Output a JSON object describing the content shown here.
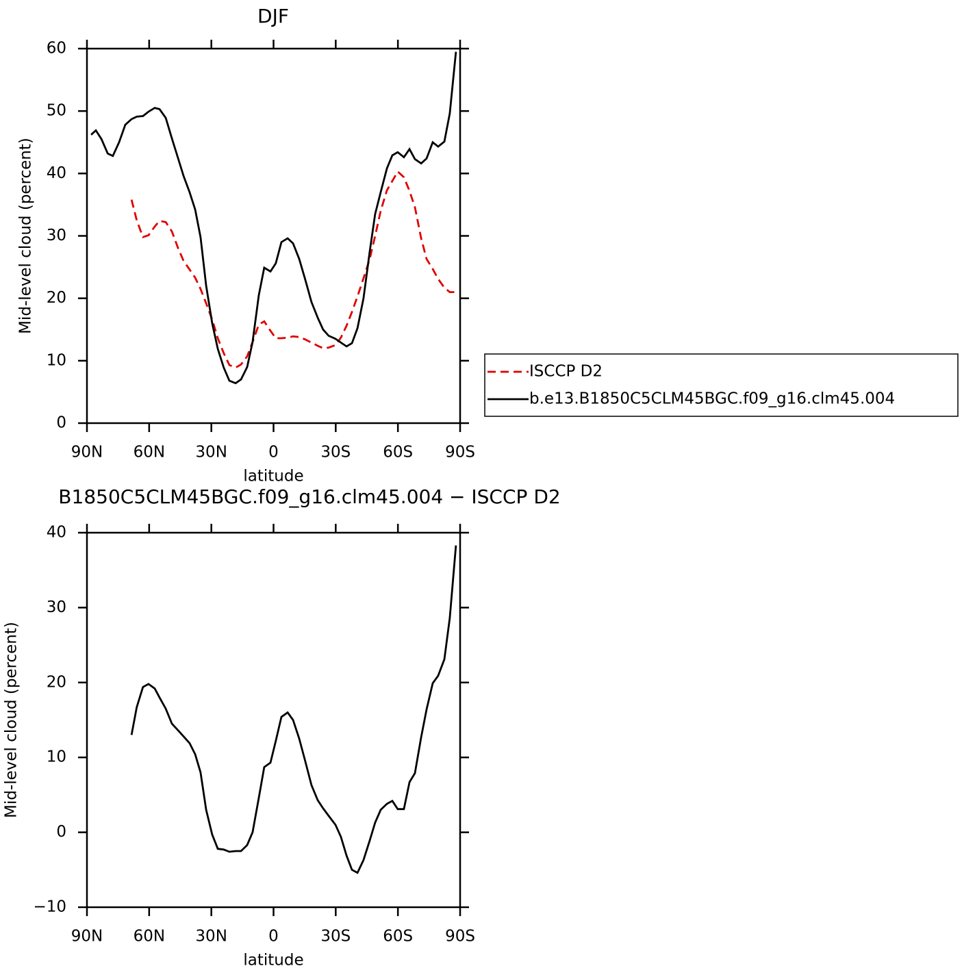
{
  "chart_data": [
    {
      "type": "line",
      "title": "DJF",
      "xlabel": "latitude",
      "ylabel": "Mid-level cloud (percent)",
      "x": [
        88,
        85.7,
        83,
        80,
        77.5,
        74.5,
        71.5,
        68.5,
        66,
        63,
        60.3,
        57.3,
        55,
        52,
        49,
        46,
        43.4,
        40.5,
        37.8,
        35.2,
        32.5,
        29.6,
        26.9,
        24,
        21.3,
        18.3,
        15.7,
        12.7,
        10.1,
        7.1,
        4.5,
        1.5,
        -1.1,
        -3.8,
        -6.8,
        -9.4,
        -12.4,
        -15.3,
        -18.3,
        -21.3,
        -23.9,
        -26.6,
        -29.9,
        -32.5,
        -35.2,
        -37.8,
        -40.5,
        -43.4,
        -46.4,
        -49,
        -51.7,
        -54.7,
        -57.3,
        -59.9,
        -62.9,
        -65.6,
        -68.2,
        -71.2,
        -73.8,
        -76.8,
        -79.4,
        -82.4,
        -85,
        -88
      ],
      "series": [
        {
          "name": "ISCCP D2",
          "color": "#e00000",
          "dash": true,
          "values": [
            null,
            null,
            null,
            null,
            null,
            null,
            null,
            35.8,
            32.5,
            29.8,
            30.1,
            31.5,
            32.4,
            32.2,
            30.7,
            28,
            26,
            24.6,
            23.3,
            21.5,
            19.2,
            16.6,
            13.6,
            11.2,
            9.3,
            8.9,
            9.4,
            10.7,
            13,
            15.8,
            16.3,
            14.8,
            13.6,
            13.6,
            13.7,
            13.9,
            13.8,
            13.4,
            12.9,
            12.4,
            12,
            12.1,
            12.5,
            13.7,
            15.6,
            17.8,
            20.3,
            23.2,
            26.3,
            30,
            34,
            37.3,
            38.8,
            40.3,
            39.4,
            37.2,
            34.6,
            29.6,
            26.3,
            24.7,
            23.1,
            21.7,
            21,
            21
          ]
        },
        {
          "name": "b.e13.B1850C5CLM45BGC.f09_g16.clm45.004",
          "color": "#000000",
          "dash": false,
          "values": [
            46.2,
            46.9,
            45.5,
            43.2,
            42.8,
            45,
            47.8,
            48.7,
            49.1,
            49.2,
            49.9,
            50.5,
            50.3,
            48.9,
            45.6,
            42.4,
            39.6,
            37,
            34.2,
            29.8,
            22,
            16,
            11.9,
            8.9,
            6.8,
            6.4,
            7,
            9,
            13,
            20.5,
            24.9,
            24.3,
            25.6,
            29,
            29.6,
            28.8,
            26.3,
            23,
            19.4,
            16.9,
            15,
            14,
            13.5,
            12.9,
            12.3,
            12.8,
            15.2,
            20,
            27.5,
            33.5,
            37,
            40.8,
            42.9,
            43.4,
            42.6,
            43.9,
            42.3,
            41.6,
            42.4,
            45,
            44.3,
            45.1,
            49.6,
            59.5
          ]
        }
      ],
      "xlim": [
        90,
        -90
      ],
      "xticks": [
        {
          "value": 90,
          "label": "90N"
        },
        {
          "value": 60,
          "label": "60N"
        },
        {
          "value": 30,
          "label": "30N"
        },
        0,
        {
          "value": -30,
          "label": "30S"
        },
        {
          "value": -60,
          "label": "60S"
        },
        {
          "value": -90,
          "label": "90S"
        }
      ],
      "ylim": [
        0,
        60
      ],
      "yticks": [
        0,
        10,
        20,
        30,
        40,
        50,
        60
      ],
      "legend": "right"
    },
    {
      "type": "line",
      "title": "B1850C5CLM45BGC.f09_g16.clm45.004 − ISCCP D2",
      "xlabel": "latitude",
      "ylabel": "Mid-level cloud (percent)",
      "x": [
        68.5,
        66,
        63,
        60.3,
        57.3,
        55,
        52,
        49,
        46,
        43.4,
        40.5,
        37.8,
        35.2,
        32.5,
        29.6,
        26.9,
        24,
        21.3,
        18.3,
        15.7,
        12.7,
        10.1,
        7.1,
        4.5,
        1.5,
        -1.1,
        -3.8,
        -6.8,
        -9.4,
        -12.4,
        -15.3,
        -18.3,
        -21.3,
        -23.9,
        -26.6,
        -29.9,
        -32.5,
        -35.2,
        -37.8,
        -40.5,
        -43.4,
        -46.4,
        -49,
        -51.7,
        -54.7,
        -57.3,
        -59.9,
        -62.9,
        -65.6,
        -68.2,
        -71.2,
        -73.8,
        -76.8,
        -79.4,
        -82.4,
        -85,
        -88
      ],
      "color": "#000000",
      "values": [
        13,
        16.7,
        19.4,
        19.8,
        19.2,
        18,
        16.5,
        14.5,
        13.6,
        12.8,
        11.9,
        10.4,
        8,
        3,
        -0.3,
        -2.2,
        -2.3,
        -2.6,
        -2.5,
        -2.5,
        -1.7,
        0,
        4.6,
        8.7,
        9.3,
        12.2,
        15.4,
        16,
        15,
        12.5,
        9.5,
        6.3,
        4.3,
        3.2,
        2.2,
        1,
        -0.6,
        -3.1,
        -5,
        -5.4,
        -3.7,
        -1.1,
        1.3,
        3,
        3.8,
        4.2,
        3.1,
        3.1,
        6.7,
        7.9,
        12.7,
        16.4,
        19.9,
        20.9,
        23.1,
        28.6,
        38.3
      ],
      "xlim": [
        90,
        -90
      ],
      "xticks": [
        {
          "value": 90,
          "label": "90N"
        },
        {
          "value": 60,
          "label": "60N"
        },
        {
          "value": 30,
          "label": "30N"
        },
        0,
        {
          "value": -30,
          "label": "30S"
        },
        {
          "value": -60,
          "label": "60S"
        },
        {
          "value": -90,
          "label": "90S"
        }
      ],
      "ylim": [
        -10,
        40
      ],
      "yticks": [
        {
          "value": -10,
          "label": "−10"
        },
        0,
        10,
        20,
        30,
        40
      ]
    }
  ]
}
